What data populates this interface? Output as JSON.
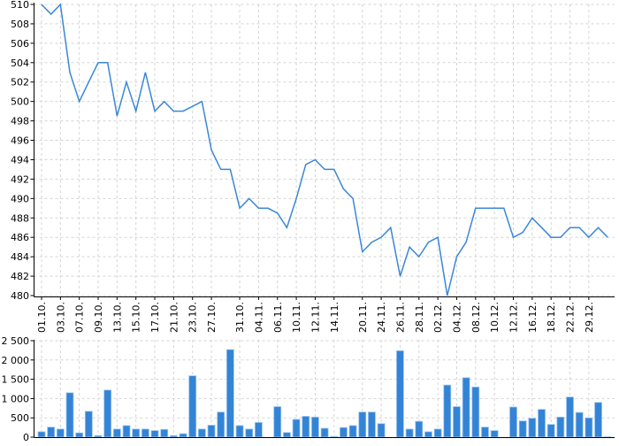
{
  "chart_data": [
    {
      "type": "line",
      "ylim": [
        480,
        510
      ],
      "y_ticks": [
        480,
        482,
        484,
        486,
        488,
        490,
        492,
        494,
        496,
        498,
        500,
        502,
        504,
        506,
        508,
        510
      ],
      "grid": true,
      "color": "#3a87d8",
      "x_ticks": [
        {
          "index": 0,
          "label": "01.10."
        },
        {
          "index": 2,
          "label": "03.10."
        },
        {
          "index": 4,
          "label": "07.10."
        },
        {
          "index": 6,
          "label": "09.10."
        },
        {
          "index": 8,
          "label": "13.10."
        },
        {
          "index": 10,
          "label": "15.10."
        },
        {
          "index": 12,
          "label": "17.10."
        },
        {
          "index": 14,
          "label": "21.10."
        },
        {
          "index": 16,
          "label": "23.10."
        },
        {
          "index": 18,
          "label": "27.10."
        },
        {
          "index": 21,
          "label": "31.10."
        },
        {
          "index": 23,
          "label": "04.11."
        },
        {
          "index": 25,
          "label": "06.11."
        },
        {
          "index": 27,
          "label": "10.11."
        },
        {
          "index": 29,
          "label": "12.11."
        },
        {
          "index": 31,
          "label": "14.11."
        },
        {
          "index": 34,
          "label": "20.11."
        },
        {
          "index": 36,
          "label": "24.11."
        },
        {
          "index": 38,
          "label": "26.11."
        },
        {
          "index": 40,
          "label": "28.11."
        },
        {
          "index": 42,
          "label": "02.12."
        },
        {
          "index": 44,
          "label": "04.12."
        },
        {
          "index": 46,
          "label": "08.12."
        },
        {
          "index": 48,
          "label": "10.12."
        },
        {
          "index": 50,
          "label": "12.12."
        },
        {
          "index": 52,
          "label": "16.12."
        },
        {
          "index": 54,
          "label": "18.12."
        },
        {
          "index": 56,
          "label": "22.12."
        },
        {
          "index": 58,
          "label": "29.12."
        }
      ],
      "values": [
        510,
        509,
        510,
        503,
        500,
        502,
        504,
        504,
        498.5,
        502,
        499,
        503,
        499,
        500,
        499,
        499,
        499.5,
        500,
        495,
        493,
        493,
        489,
        490,
        489,
        489,
        488.5,
        487,
        490,
        493.5,
        494,
        493,
        493,
        491,
        490,
        484.5,
        485.5,
        486,
        487,
        482,
        485,
        484,
        485.5,
        486,
        480,
        484,
        485.5,
        489,
        489,
        489,
        489,
        486,
        486.5,
        488,
        487,
        486,
        486,
        487,
        487,
        486,
        487,
        486
      ]
    },
    {
      "type": "bar",
      "ylim": [
        0,
        2500
      ],
      "y_ticks": [
        {
          "value": 0,
          "label": "0"
        },
        {
          "value": 500,
          "label": "500"
        },
        {
          "value": 1000,
          "label": "1 000"
        },
        {
          "value": 1500,
          "label": "1 500"
        },
        {
          "value": 2000,
          "label": "2 000"
        },
        {
          "value": 2500,
          "label": "2 500"
        }
      ],
      "grid": true,
      "color": "#3384d6",
      "values": [
        140,
        260,
        210,
        1150,
        110,
        670,
        40,
        1220,
        210,
        300,
        210,
        210,
        170,
        200,
        40,
        90,
        1590,
        210,
        310,
        650,
        2270,
        300,
        210,
        380,
        0,
        790,
        120,
        460,
        540,
        520,
        230,
        20,
        250,
        300,
        650,
        650,
        350,
        0,
        2240,
        210,
        410,
        140,
        210,
        1350,
        790,
        1540,
        1300,
        260,
        170,
        0,
        780,
        420,
        490,
        720,
        330,
        520,
        1040,
        640,
        500,
        900,
        10
      ]
    }
  ]
}
